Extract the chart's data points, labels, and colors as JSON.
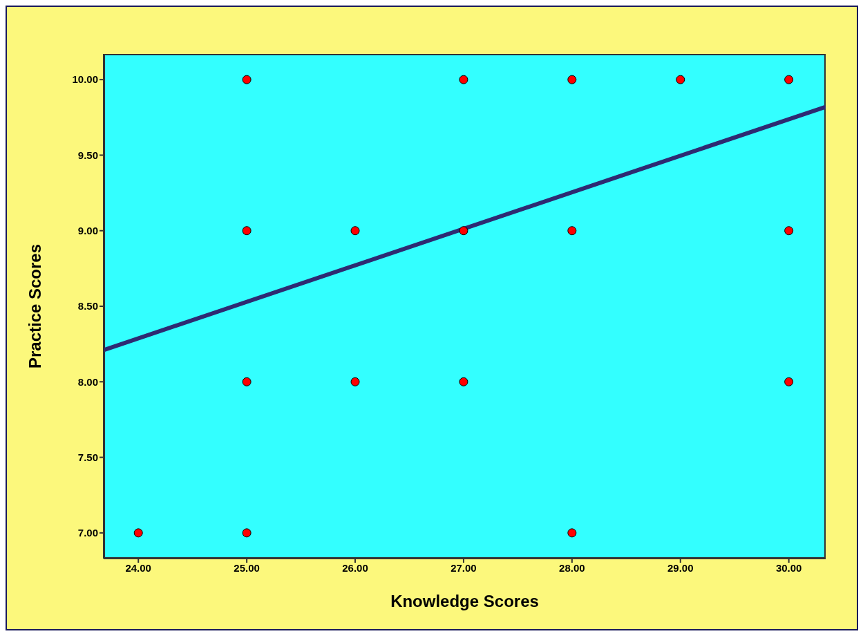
{
  "chart_data": {
    "type": "scatter",
    "xlabel": "Knowledge Scores",
    "ylabel": "Practice Scores",
    "xlim": [
      23.68,
      30.34
    ],
    "ylim": [
      6.83,
      10.17
    ],
    "xticks": [
      {
        "value": 24,
        "label": "24.00"
      },
      {
        "value": 25,
        "label": "25.00"
      },
      {
        "value": 26,
        "label": "26.00"
      },
      {
        "value": 27,
        "label": "27.00"
      },
      {
        "value": 28,
        "label": "28.00"
      },
      {
        "value": 29,
        "label": "29.00"
      },
      {
        "value": 30,
        "label": "30.00"
      }
    ],
    "yticks": [
      {
        "value": 7,
        "label": "7.00"
      },
      {
        "value": 7.5,
        "label": "7.50"
      },
      {
        "value": 8,
        "label": "8.00"
      },
      {
        "value": 8.5,
        "label": "8.50"
      },
      {
        "value": 9,
        "label": "9.00"
      },
      {
        "value": 9.5,
        "label": "9.50"
      },
      {
        "value": 10,
        "label": "10.00"
      }
    ],
    "marker": "circle",
    "series": [
      {
        "color": "#ff0000",
        "x": [
          24,
          25,
          25,
          25,
          25,
          26,
          26,
          27,
          27,
          27,
          28,
          28,
          28,
          29,
          30,
          30,
          30
        ],
        "values": [
          7,
          10,
          9,
          8,
          7,
          9,
          8,
          10,
          9,
          8,
          10,
          9,
          7,
          10,
          10,
          9,
          8
        ]
      },
      {
        "type": "line",
        "color": "#2e2a72",
        "line_style": "solid",
        "marker": "none",
        "x": [
          23.68,
          30.34
        ],
        "values": [
          8.21,
          9.82
        ]
      }
    ]
  }
}
